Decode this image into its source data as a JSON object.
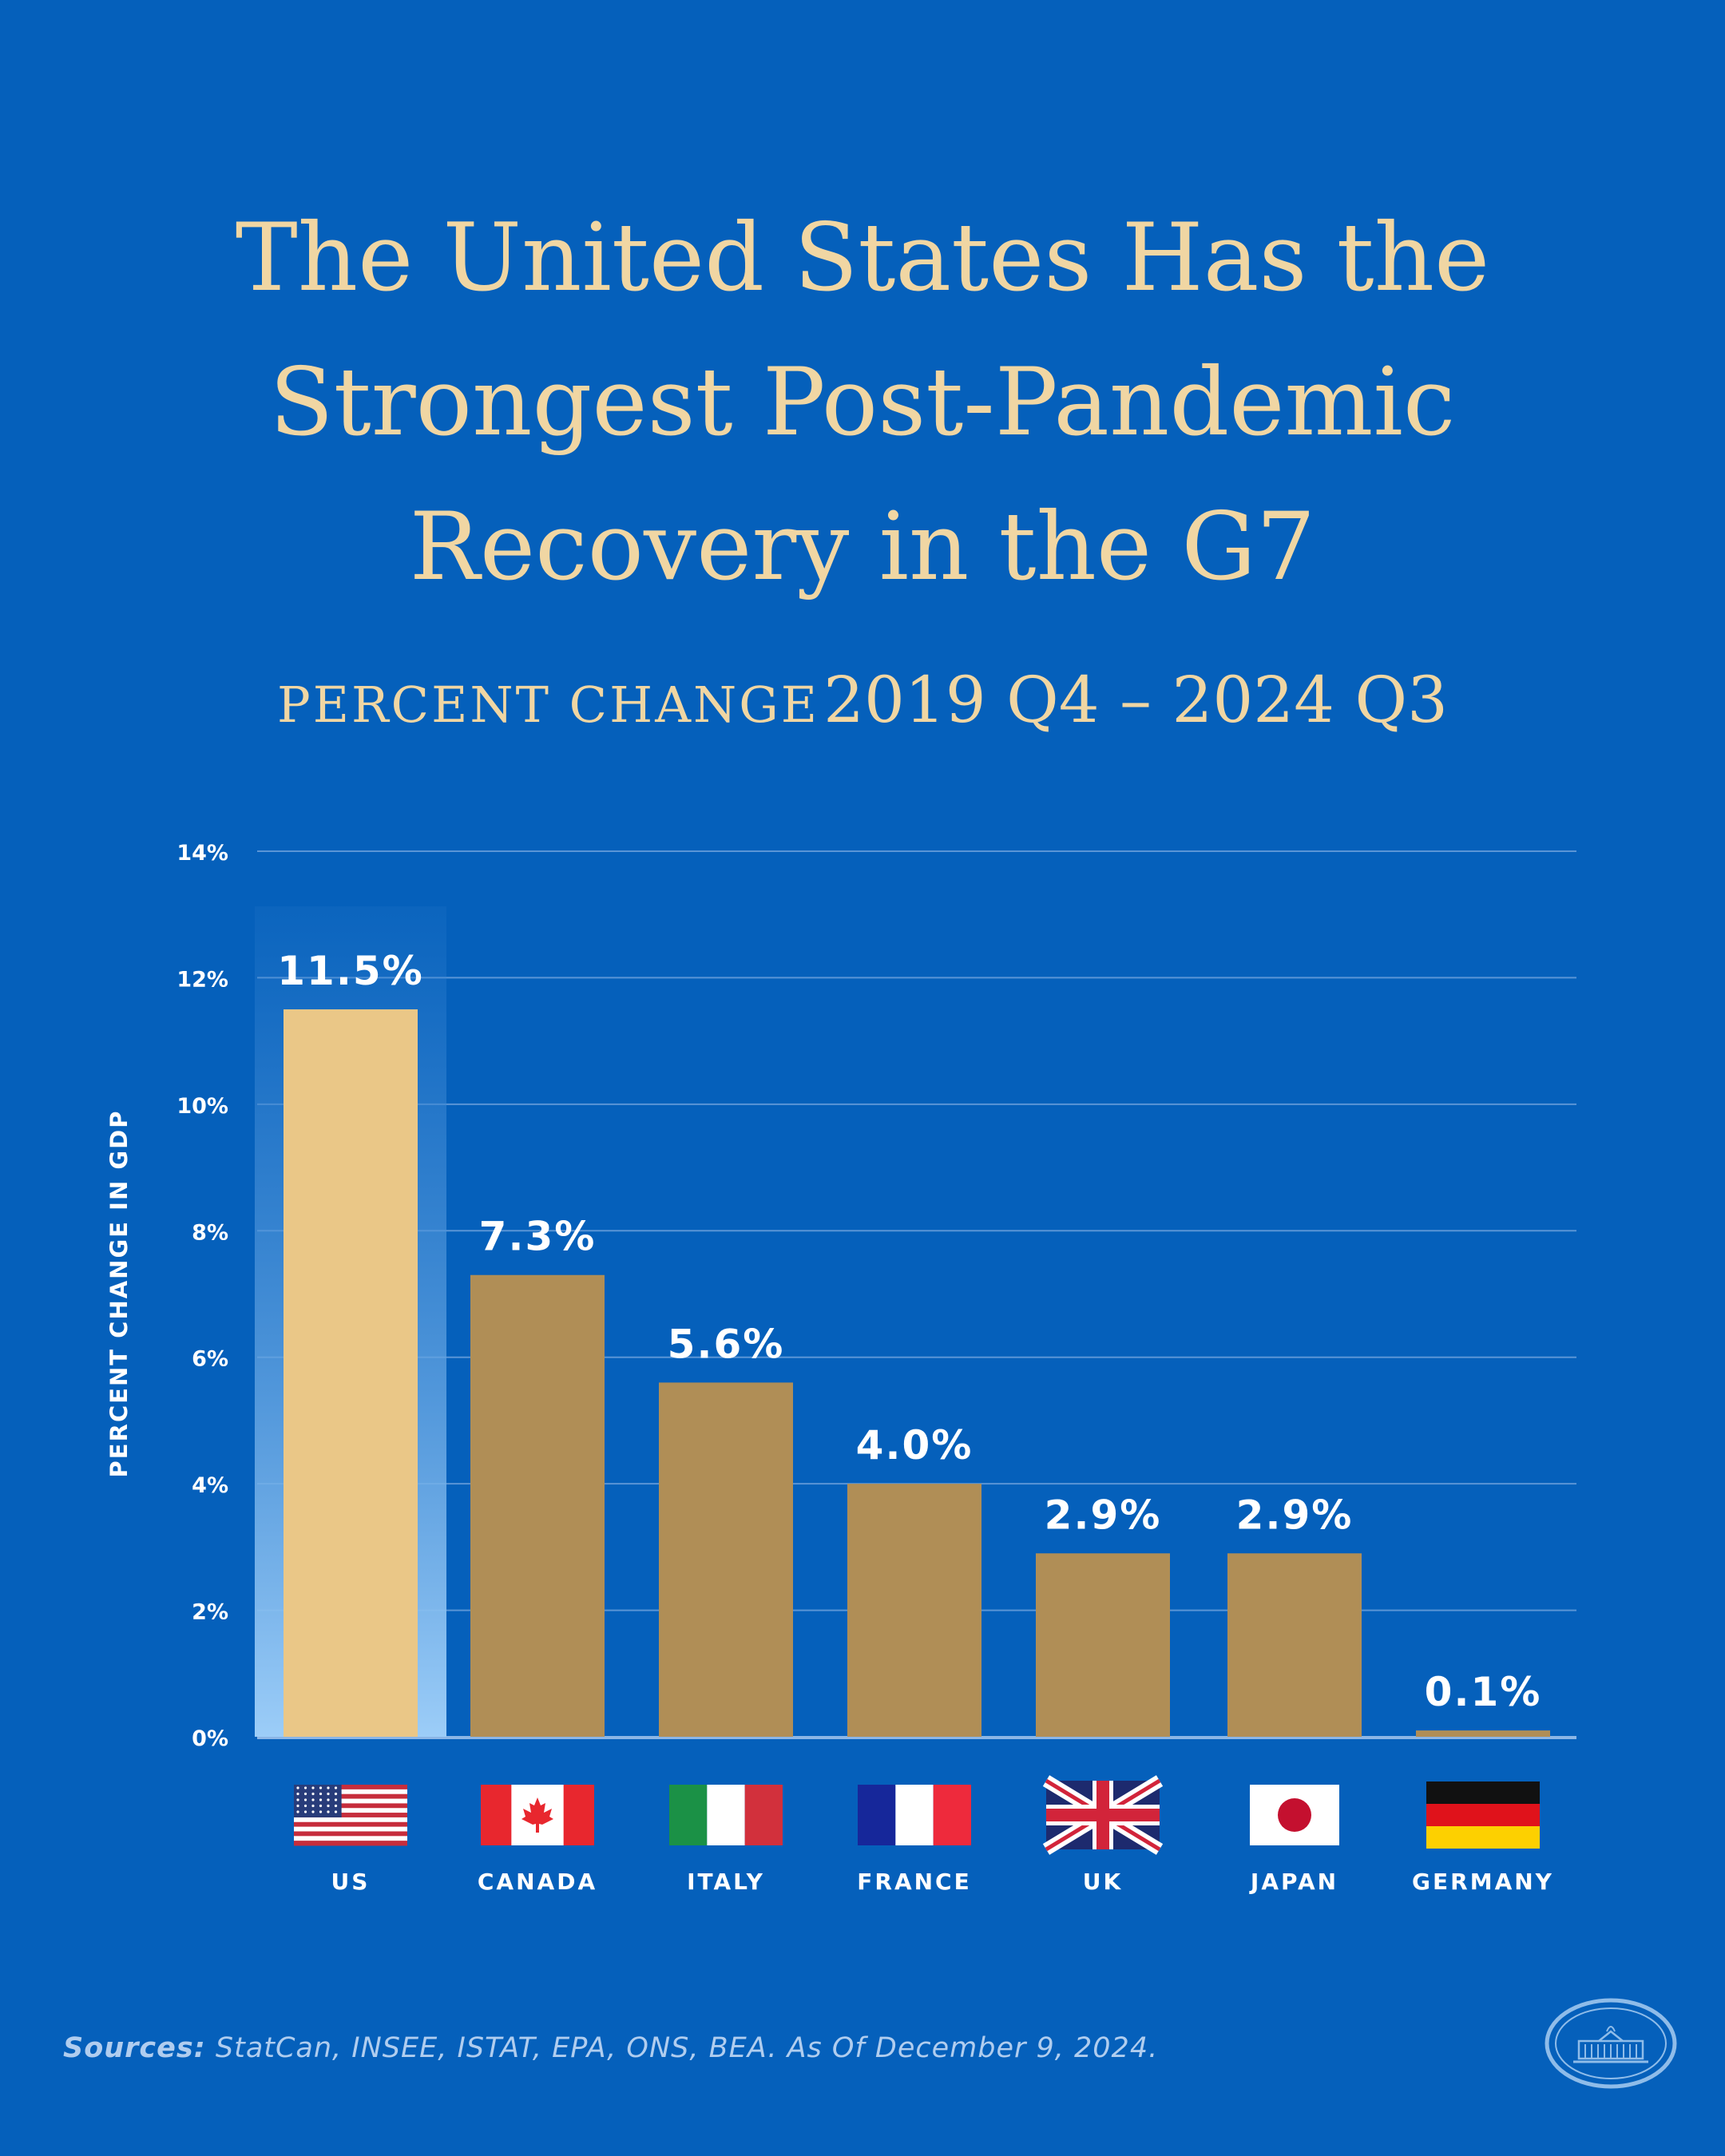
{
  "title_lines": [
    "The United States Has the",
    "Strongest Post-Pandemic",
    "Recovery in the G7"
  ],
  "subtitle": {
    "caps": "PERCENT CHANGE",
    "range": "2019 Q4 – 2024 Q3"
  },
  "colors": {
    "background": "#0560bb",
    "title": "#f0d6a3",
    "highlight_bar": "#eac787",
    "bar": "#b08e56",
    "gridline": "#5a95d6",
    "text": "#ffffff"
  },
  "chart_data": {
    "type": "bar",
    "title": "Percent Change 2019 Q4 – 2024 Q3",
    "ylabel": "PERCENT CHANGE IN GDP",
    "xlabel": "",
    "ylim": [
      0,
      14
    ],
    "yticks": [
      0,
      2,
      4,
      6,
      8,
      10,
      12,
      14
    ],
    "ytick_labels": [
      "0%",
      "2%",
      "4%",
      "6%",
      "8%",
      "10%",
      "12%",
      "14%"
    ],
    "grid": true,
    "categories": [
      "US",
      "CANADA",
      "ITALY",
      "FRANCE",
      "UK",
      "JAPAN",
      "GERMANY"
    ],
    "flags": [
      "us-flag",
      "canada-flag",
      "italy-flag",
      "france-flag",
      "uk-flag",
      "japan-flag",
      "germany-flag"
    ],
    "values": [
      11.5,
      7.3,
      5.6,
      4.0,
      2.9,
      2.9,
      0.1
    ],
    "value_labels": [
      "11.5%",
      "7.3%",
      "5.6%",
      "4.0%",
      "2.9%",
      "2.9%",
      "0.1%"
    ],
    "highlight": "US"
  },
  "sources": {
    "label": "Sources:",
    "text": " StatCan, INSEE, ISTAT, EPA, ONS, BEA. As Of December 9, 2024."
  },
  "seal_icon": "white-house-seal-icon"
}
